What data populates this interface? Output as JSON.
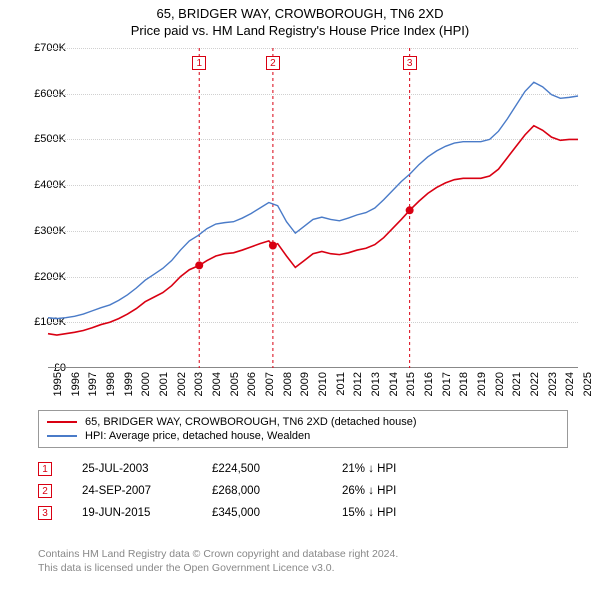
{
  "title_line1": "65, BRIDGER WAY, CROWBOROUGH, TN6 2XD",
  "title_line2": "Price paid vs. HM Land Registry's House Price Index (HPI)",
  "chart": {
    "type": "line",
    "x_start_year": 1995,
    "x_end_year": 2025,
    "x_tick_years": [
      1995,
      1996,
      1997,
      1998,
      1999,
      2000,
      2001,
      2002,
      2003,
      2004,
      2005,
      2006,
      2007,
      2008,
      2009,
      2010,
      2011,
      2012,
      2013,
      2014,
      2015,
      2016,
      2017,
      2018,
      2019,
      2020,
      2021,
      2022,
      2023,
      2024,
      2025
    ],
    "y_min": 0,
    "y_max": 700000,
    "y_tick_step": 100000,
    "y_tick_labels": [
      "£0",
      "£100K",
      "£200K",
      "£300K",
      "£400K",
      "£500K",
      "£600K",
      "£700K"
    ],
    "grid_color": "#d0d0d0",
    "background_color": "#ffffff",
    "series": [
      {
        "name": "property",
        "label": "65, BRIDGER WAY, CROWBOROUGH, TN6 2XD (detached house)",
        "color": "#d90012",
        "width": 1.6,
        "points": [
          [
            1995.0,
            75000
          ],
          [
            1995.5,
            72000
          ],
          [
            1996.0,
            75000
          ],
          [
            1996.5,
            78000
          ],
          [
            1997.0,
            82000
          ],
          [
            1997.5,
            88000
          ],
          [
            1998.0,
            95000
          ],
          [
            1998.5,
            100000
          ],
          [
            1999.0,
            108000
          ],
          [
            1999.5,
            118000
          ],
          [
            2000.0,
            130000
          ],
          [
            2000.5,
            145000
          ],
          [
            2001.0,
            155000
          ],
          [
            2001.5,
            165000
          ],
          [
            2002.0,
            180000
          ],
          [
            2002.5,
            200000
          ],
          [
            2003.0,
            215000
          ],
          [
            2003.56,
            224500
          ],
          [
            2004.0,
            235000
          ],
          [
            2004.5,
            245000
          ],
          [
            2005.0,
            250000
          ],
          [
            2005.5,
            252000
          ],
          [
            2006.0,
            258000
          ],
          [
            2006.5,
            265000
          ],
          [
            2007.0,
            272000
          ],
          [
            2007.5,
            278000
          ],
          [
            2007.73,
            268000
          ],
          [
            2008.0,
            272000
          ],
          [
            2008.5,
            245000
          ],
          [
            2009.0,
            220000
          ],
          [
            2009.5,
            235000
          ],
          [
            2010.0,
            250000
          ],
          [
            2010.5,
            255000
          ],
          [
            2011.0,
            250000
          ],
          [
            2011.5,
            248000
          ],
          [
            2012.0,
            252000
          ],
          [
            2012.5,
            258000
          ],
          [
            2013.0,
            262000
          ],
          [
            2013.5,
            270000
          ],
          [
            2014.0,
            285000
          ],
          [
            2014.5,
            305000
          ],
          [
            2015.0,
            325000
          ],
          [
            2015.47,
            345000
          ],
          [
            2016.0,
            365000
          ],
          [
            2016.5,
            382000
          ],
          [
            2017.0,
            395000
          ],
          [
            2017.5,
            405000
          ],
          [
            2018.0,
            412000
          ],
          [
            2018.5,
            415000
          ],
          [
            2019.0,
            415000
          ],
          [
            2019.5,
            415000
          ],
          [
            2020.0,
            420000
          ],
          [
            2020.5,
            435000
          ],
          [
            2021.0,
            460000
          ],
          [
            2021.5,
            485000
          ],
          [
            2022.0,
            510000
          ],
          [
            2022.5,
            530000
          ],
          [
            2023.0,
            520000
          ],
          [
            2023.5,
            505000
          ],
          [
            2024.0,
            498000
          ],
          [
            2024.5,
            500000
          ],
          [
            2025.0,
            500000
          ]
        ]
      },
      {
        "name": "hpi",
        "label": "HPI: Average price, detached house, Wealden",
        "color": "#4a7bc8",
        "width": 1.4,
        "points": [
          [
            1995.0,
            110000
          ],
          [
            1995.5,
            108000
          ],
          [
            1996.0,
            110000
          ],
          [
            1996.5,
            113000
          ],
          [
            1997.0,
            118000
          ],
          [
            1997.5,
            125000
          ],
          [
            1998.0,
            132000
          ],
          [
            1998.5,
            138000
          ],
          [
            1999.0,
            148000
          ],
          [
            1999.5,
            160000
          ],
          [
            2000.0,
            175000
          ],
          [
            2000.5,
            192000
          ],
          [
            2001.0,
            205000
          ],
          [
            2001.5,
            218000
          ],
          [
            2002.0,
            235000
          ],
          [
            2002.5,
            258000
          ],
          [
            2003.0,
            278000
          ],
          [
            2003.5,
            290000
          ],
          [
            2004.0,
            305000
          ],
          [
            2004.5,
            315000
          ],
          [
            2005.0,
            318000
          ],
          [
            2005.5,
            320000
          ],
          [
            2006.0,
            328000
          ],
          [
            2006.5,
            338000
          ],
          [
            2007.0,
            350000
          ],
          [
            2007.5,
            362000
          ],
          [
            2008.0,
            355000
          ],
          [
            2008.5,
            320000
          ],
          [
            2009.0,
            295000
          ],
          [
            2009.5,
            310000
          ],
          [
            2010.0,
            325000
          ],
          [
            2010.5,
            330000
          ],
          [
            2011.0,
            325000
          ],
          [
            2011.5,
            322000
          ],
          [
            2012.0,
            328000
          ],
          [
            2012.5,
            335000
          ],
          [
            2013.0,
            340000
          ],
          [
            2013.5,
            350000
          ],
          [
            2014.0,
            368000
          ],
          [
            2014.5,
            388000
          ],
          [
            2015.0,
            408000
          ],
          [
            2015.5,
            425000
          ],
          [
            2016.0,
            445000
          ],
          [
            2016.5,
            462000
          ],
          [
            2017.0,
            475000
          ],
          [
            2017.5,
            485000
          ],
          [
            2018.0,
            492000
          ],
          [
            2018.5,
            495000
          ],
          [
            2019.0,
            495000
          ],
          [
            2019.5,
            495000
          ],
          [
            2020.0,
            500000
          ],
          [
            2020.5,
            518000
          ],
          [
            2021.0,
            545000
          ],
          [
            2021.5,
            575000
          ],
          [
            2022.0,
            605000
          ],
          [
            2022.5,
            625000
          ],
          [
            2023.0,
            615000
          ],
          [
            2023.5,
            598000
          ],
          [
            2024.0,
            590000
          ],
          [
            2024.5,
            592000
          ],
          [
            2025.0,
            595000
          ]
        ]
      }
    ],
    "sale_markers": [
      {
        "num": "1",
        "year": 2003.56,
        "value": 224500,
        "color": "#d90012"
      },
      {
        "num": "2",
        "year": 2007.73,
        "value": 268000,
        "color": "#d90012"
      },
      {
        "num": "3",
        "year": 2015.47,
        "value": 345000,
        "color": "#d90012"
      }
    ]
  },
  "legend": {
    "items": [
      {
        "color": "#d90012",
        "label": "65, BRIDGER WAY, CROWBOROUGH, TN6 2XD (detached house)"
      },
      {
        "color": "#4a7bc8",
        "label": "HPI: Average price, detached house, Wealden"
      }
    ]
  },
  "sales": [
    {
      "num": "1",
      "color": "#d90012",
      "date": "25-JUL-2003",
      "price": "£224,500",
      "delta": "21% ↓ HPI"
    },
    {
      "num": "2",
      "color": "#d90012",
      "date": "24-SEP-2007",
      "price": "£268,000",
      "delta": "26% ↓ HPI"
    },
    {
      "num": "3",
      "color": "#d90012",
      "date": "19-JUN-2015",
      "price": "£345,000",
      "delta": "15% ↓ HPI"
    }
  ],
  "footer_line1": "Contains HM Land Registry data © Crown copyright and database right 2024.",
  "footer_line2": "This data is licensed under the Open Government Licence v3.0."
}
